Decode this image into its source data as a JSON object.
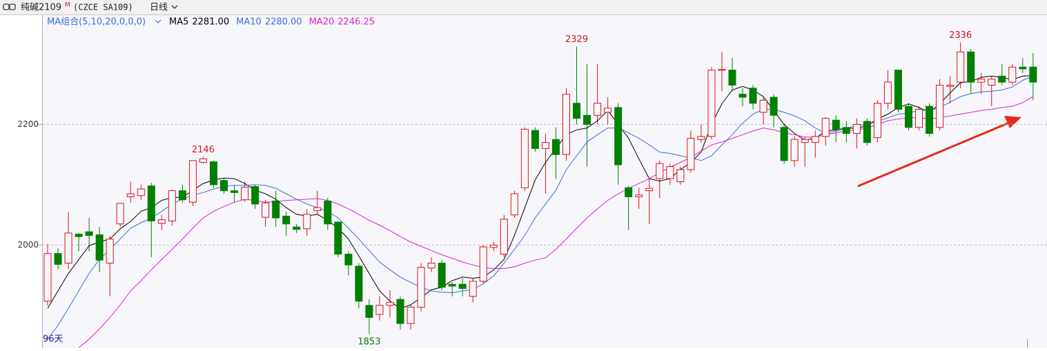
{
  "chart_data": {
    "type": "candlestick",
    "title": "纯碱2109",
    "title_sup": "M",
    "code": "(CZCE SA109)",
    "period": "日线",
    "ma_label": "MA组合(5,10,20,0,0,0)",
    "day_count": "96天",
    "up_color": "#e0101a",
    "down_color": "#008000",
    "ylim": [
      1829,
      2381
    ],
    "yticks": [
      2000,
      2200
    ],
    "grid": true,
    "open": [
      1907,
      1986,
      1970,
      2018,
      2022,
      2017,
      1970,
      2035,
      2080,
      2082,
      2098,
      2036,
      2040,
      2090,
      2071,
      2137,
      2138,
      2107,
      2090,
      2075,
      2097,
      2046,
      2073,
      2048,
      2030,
      2027,
      2057,
      2073,
      2038,
      1985,
      1965,
      1900,
      1885,
      1900,
      1910,
      1870,
      1897,
      1962,
      1970,
      1935,
      1935,
      1915,
      1940,
      1996,
      1985,
      2050,
      2095,
      2190,
      2160,
      2175,
      2150,
      2235,
      2215,
      2215,
      2220,
      2228,
      2095,
      2080,
      2090,
      2110,
      2110,
      2105,
      2125,
      2175,
      2180,
      2290,
      2290,
      2250,
      2260,
      2220,
      2245,
      2195,
      2140,
      2170,
      2170,
      2180,
      2207,
      2195,
      2185,
      2205,
      2178,
      2235,
      2290,
      2230,
      2195,
      2230,
      2195,
      2263,
      2270,
      2320,
      2270,
      2265,
      2280,
      2270,
      2295,
      2295
    ],
    "high": [
      2002,
      1995,
      2055,
      2020,
      2045,
      2030,
      2015,
      2069,
      2105,
      2100,
      2103,
      2050,
      2092,
      2100,
      2140,
      2146,
      2140,
      2110,
      2100,
      2105,
      2100,
      2075,
      2090,
      2055,
      2035,
      2060,
      2090,
      2078,
      2040,
      1990,
      1970,
      1910,
      1915,
      1925,
      1915,
      1900,
      1970,
      1980,
      1975,
      1938,
      1945,
      1945,
      2000,
      2005,
      2050,
      2090,
      2195,
      2195,
      2185,
      2195,
      2260,
      2329,
      2300,
      2300,
      2245,
      2235,
      2098,
      2095,
      2110,
      2140,
      2135,
      2130,
      2190,
      2200,
      2295,
      2320,
      2310,
      2260,
      2265,
      2245,
      2250,
      2200,
      2180,
      2180,
      2190,
      2212,
      2215,
      2205,
      2210,
      2210,
      2240,
      2290,
      2290,
      2235,
      2230,
      2235,
      2275,
      2280,
      2336,
      2325,
      2285,
      2280,
      2300,
      2300,
      2310,
      2318
    ],
    "low": [
      1900,
      1960,
      1960,
      1990,
      1990,
      1955,
      1915,
      2030,
      2070,
      2075,
      1980,
      2025,
      2032,
      2070,
      2065,
      2135,
      2095,
      2085,
      2070,
      2072,
      2060,
      2030,
      2030,
      2015,
      2020,
      2015,
      2050,
      2025,
      1980,
      1950,
      1895,
      1853,
      1875,
      1880,
      1860,
      1860,
      1890,
      1955,
      1925,
      1915,
      1915,
      1905,
      1935,
      1990,
      1980,
      2045,
      2090,
      2155,
      2085,
      2110,
      2140,
      2200,
      2130,
      2200,
      2200,
      2100,
      2025,
      2060,
      2035,
      2078,
      2100,
      2100,
      2120,
      2170,
      2175,
      2255,
      2255,
      2230,
      2225,
      2200,
      2195,
      2135,
      2130,
      2130,
      2145,
      2165,
      2170,
      2170,
      2160,
      2165,
      2170,
      2225,
      2220,
      2190,
      2190,
      2180,
      2190,
      2235,
      2260,
      2250,
      2250,
      2230,
      2265,
      2265,
      2285,
      2240
    ],
    "close": [
      1986,
      1968,
      2020,
      2014,
      2016,
      1975,
      2010,
      2069,
      2085,
      2093,
      2040,
      2042,
      2090,
      2075,
      2140,
      2143,
      2100,
      2090,
      2087,
      2096,
      2068,
      2070,
      2045,
      2035,
      2026,
      2051,
      2062,
      2035,
      1985,
      1967,
      1907,
      1880,
      1900,
      1905,
      1870,
      1897,
      1963,
      1970,
      1930,
      1932,
      1928,
      1940,
      1997,
      2000,
      2043,
      2085,
      2192,
      2160,
      2170,
      2150,
      2250,
      2210,
      2200,
      2235,
      2227,
      2133,
      2080,
      2083,
      2094,
      2135,
      2130,
      2125,
      2177,
      2180,
      2290,
      2291,
      2265,
      2245,
      2235,
      2240,
      2215,
      2140,
      2175,
      2175,
      2180,
      2210,
      2192,
      2185,
      2200,
      2170,
      2235,
      2270,
      2225,
      2195,
      2225,
      2185,
      2265,
      2265,
      2320,
      2270,
      2275,
      2275,
      2270,
      2295,
      2292,
      2270
    ],
    "ma": [
      {
        "name": "MA5",
        "color": "#000000",
        "value_label": "2281.00",
        "values": [
          1895,
          1924,
          1953,
          1976,
          1999,
          2005,
          2010,
          2027,
          2039,
          2056,
          2062,
          2074,
          2079,
          2079,
          2091,
          2102,
          2108,
          2111,
          2110,
          2102,
          2091,
          2085,
          2076,
          2062,
          2051,
          2048,
          2051,
          2041,
          2028,
          2010,
          1982,
          1953,
          1924,
          1907,
          1895,
          1901,
          1913,
          1926,
          1930,
          1941,
          1947,
          1945,
          1947,
          1959,
          1976,
          2016,
          2062,
          2108,
          2137,
          2160,
          2183,
          2191,
          2194,
          2206,
          2223,
          2200,
          2177,
          2143,
          2110,
          2106,
          2110,
          2125,
          2137,
          2154,
          2200,
          2234,
          2257,
          2263,
          2257,
          2246,
          2223,
          2200,
          2185,
          2174,
          2177,
          2189,
          2191,
          2194,
          2193,
          2198,
          2209,
          2217,
          2228,
          2234,
          2228,
          2220,
          2234,
          2252,
          2269,
          2271,
          2278,
          2280,
          2278,
          2274,
          2280,
          2281
        ]
      },
      {
        "name": "MA10",
        "color": "#3c6fd8",
        "value_label": "2280.00",
        "values": [
          1844,
          1867,
          1895,
          1924,
          1953,
          1976,
          1993,
          2010,
          2028,
          2037,
          2045,
          2056,
          2068,
          2076,
          2083,
          2087,
          2093,
          2097,
          2099,
          2099,
          2100,
          2099,
          2094,
          2085,
          2076,
          2068,
          2062,
          2056,
          2045,
          2028,
          2010,
          1991,
          1972,
          1959,
          1947,
          1938,
          1930,
          1924,
          1922,
          1921,
          1924,
          1926,
          1936,
          1949,
          1970,
          1993,
          2016,
          2045,
          2068,
          2091,
          2125,
          2148,
          2171,
          2183,
          2194,
          2194,
          2186,
          2177,
          2166,
          2154,
          2152,
          2148,
          2145,
          2140,
          2148,
          2166,
          2183,
          2202,
          2217,
          2225,
          2225,
          2220,
          2214,
          2206,
          2194,
          2185,
          2189,
          2193,
          2198,
          2200,
          2205,
          2211,
          2217,
          2219,
          2223,
          2223,
          2228,
          2237,
          2246,
          2251,
          2254,
          2255,
          2257,
          2262,
          2273,
          2280
        ]
      },
      {
        "name": "MA20",
        "color": "#e020d0",
        "value_label": "2246.25",
        "values": [
          null,
          null,
          null,
          1830,
          1844,
          1861,
          1880,
          1901,
          1924,
          1941,
          1959,
          1976,
          1993,
          2010,
          2028,
          2045,
          2056,
          2064,
          2071,
          2076,
          2074,
          2071,
          2072,
          2074,
          2075,
          2076,
          2077,
          2074,
          2068,
          2060,
          2051,
          2041,
          2033,
          2024,
          2014,
          2005,
          1998,
          1991,
          1984,
          1978,
          1972,
          1967,
          1963,
          1961,
          1961,
          1964,
          1970,
          1975,
          1979,
          1993,
          2010,
          2028,
          2045,
          2060,
          2074,
          2085,
          2094,
          2102,
          2110,
          2120,
          2129,
          2137,
          2145,
          2156,
          2166,
          2171,
          2177,
          2183,
          2189,
          2194,
          2191,
          2186,
          2183,
          2179,
          2179,
          2183,
          2186,
          2189,
          2191,
          2194,
          2200,
          2206,
          2209,
          2211,
          2211,
          2209,
          2211,
          2214,
          2217,
          2220,
          2223,
          2225,
          2228,
          2230,
          2236,
          2246.25
        ]
      }
    ]
  }
}
